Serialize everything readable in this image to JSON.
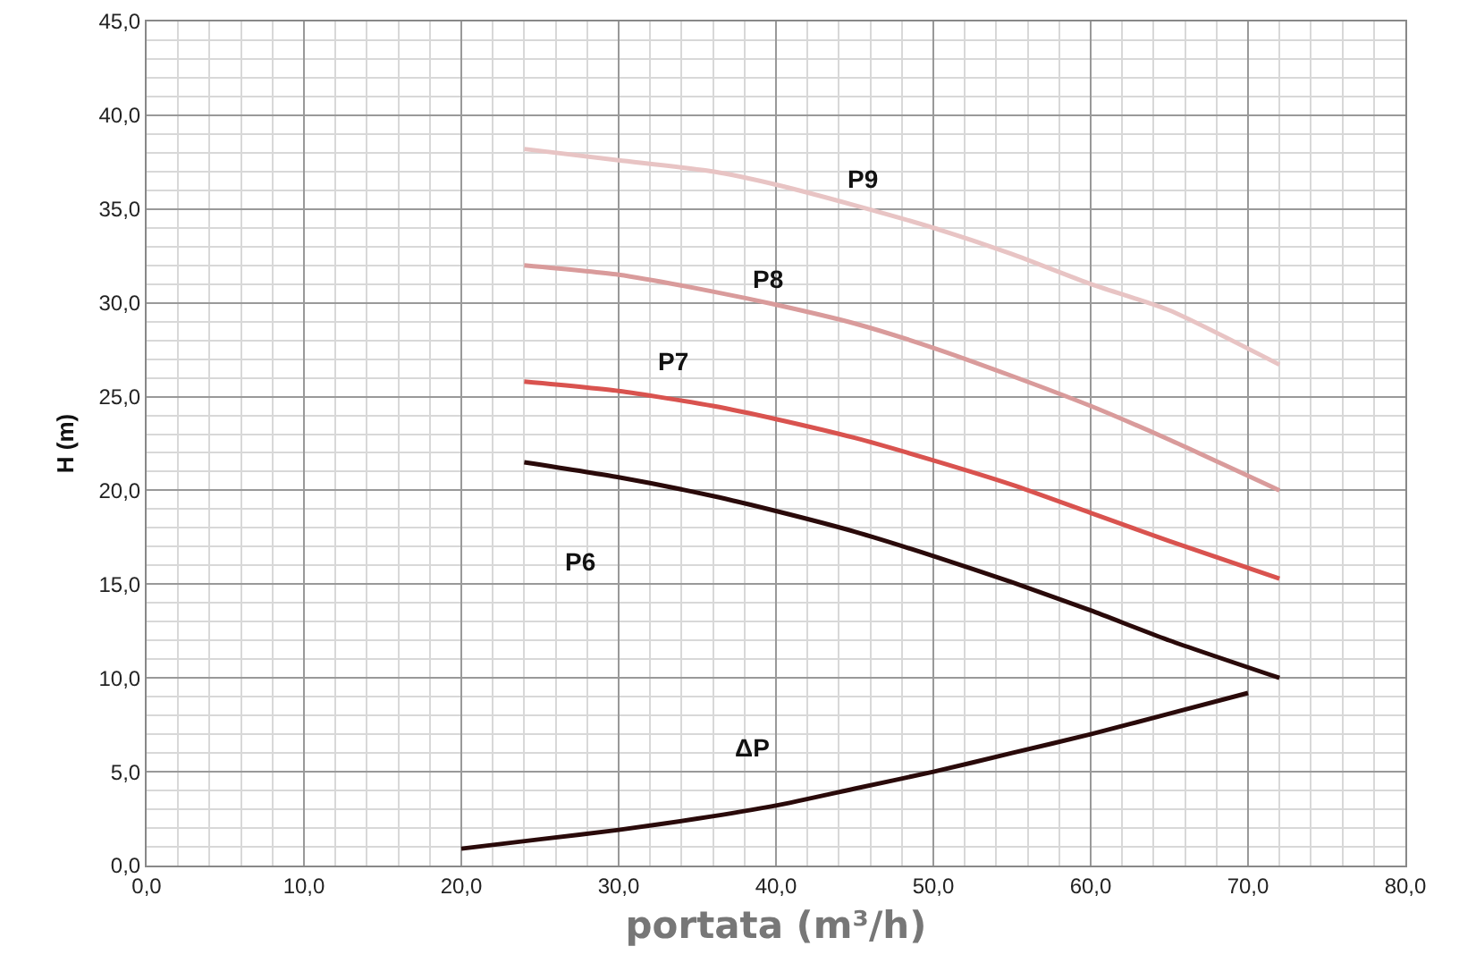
{
  "chart_data": {
    "type": "line",
    "xlabel": "portata (m³/h)",
    "ylabel": "H (m)",
    "xlim": [
      0,
      80
    ],
    "xticks": [
      {
        "value": 0,
        "label": "0,0"
      },
      {
        "value": 10,
        "label": "10,0"
      },
      {
        "value": 20,
        "label": "20,0"
      },
      {
        "value": 30,
        "label": "30,0"
      },
      {
        "value": 40,
        "label": "40,0"
      },
      {
        "value": 50,
        "label": "50,0"
      },
      {
        "value": 60,
        "label": "60,0"
      },
      {
        "value": 70,
        "label": "70,0"
      },
      {
        "value": 80,
        "label": "80,0"
      }
    ],
    "ylim": [
      0,
      45
    ],
    "yticks": [
      {
        "value": 0,
        "label": "0,0"
      },
      {
        "value": 5,
        "label": "5,0"
      },
      {
        "value": 10,
        "label": "10,0"
      },
      {
        "value": 15,
        "label": "15,0"
      },
      {
        "value": 20,
        "label": "20,0"
      },
      {
        "value": 25,
        "label": "25,0"
      },
      {
        "value": 30,
        "label": "30,0"
      },
      {
        "value": 35,
        "label": "35,0"
      },
      {
        "value": 40,
        "label": "40,0"
      },
      {
        "value": 45,
        "label": "45,0"
      }
    ],
    "grid": true,
    "legend": false,
    "marker": "none",
    "line_style": "solid",
    "series": [
      {
        "name": "P6",
        "color": "#2a0a0a",
        "x": [
          24,
          30,
          36,
          40,
          45,
          50,
          55,
          60,
          65,
          72
        ],
        "values": [
          21.5,
          20.7,
          19.7,
          18.9,
          17.8,
          16.5,
          15.1,
          13.6,
          12.0,
          10.0
        ]
      },
      {
        "name": "P7",
        "color": "#d9534f",
        "x": [
          24,
          30,
          36,
          40,
          45,
          50,
          55,
          60,
          65,
          72
        ],
        "values": [
          25.8,
          25.3,
          24.5,
          23.8,
          22.8,
          21.6,
          20.3,
          18.8,
          17.3,
          15.3
        ]
      },
      {
        "name": "P8",
        "color": "#d99b9b",
        "x": [
          24,
          30,
          36,
          40,
          45,
          50,
          55,
          60,
          65,
          72
        ],
        "values": [
          32.0,
          31.5,
          30.6,
          29.9,
          28.9,
          27.6,
          26.1,
          24.5,
          22.7,
          20.0
        ]
      },
      {
        "name": "P9",
        "color": "#e8c4c4",
        "x": [
          24,
          30,
          36,
          40,
          45,
          50,
          55,
          60,
          65,
          72
        ],
        "values": [
          38.2,
          37.6,
          37.0,
          36.3,
          35.2,
          34.0,
          32.6,
          31.0,
          29.6,
          26.7
        ]
      },
      {
        "name": "ΔP",
        "color": "#2a0a0a",
        "x": [
          20,
          25,
          30,
          35,
          40,
          45,
          50,
          55,
          60,
          65,
          70
        ],
        "values": [
          0.9,
          1.4,
          1.9,
          2.5,
          3.2,
          4.1,
          5.0,
          6.0,
          7.0,
          8.1,
          9.2
        ]
      }
    ]
  }
}
